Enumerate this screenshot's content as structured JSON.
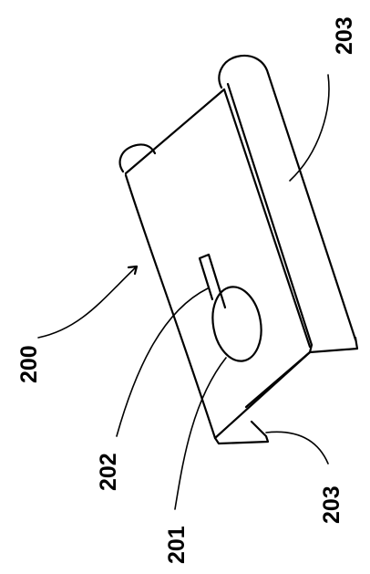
{
  "figure": {
    "labels": {
      "part_200": "200",
      "part_201": "201",
      "part_202": "202",
      "part_203_top": "203",
      "part_203_bottom": "203"
    }
  }
}
